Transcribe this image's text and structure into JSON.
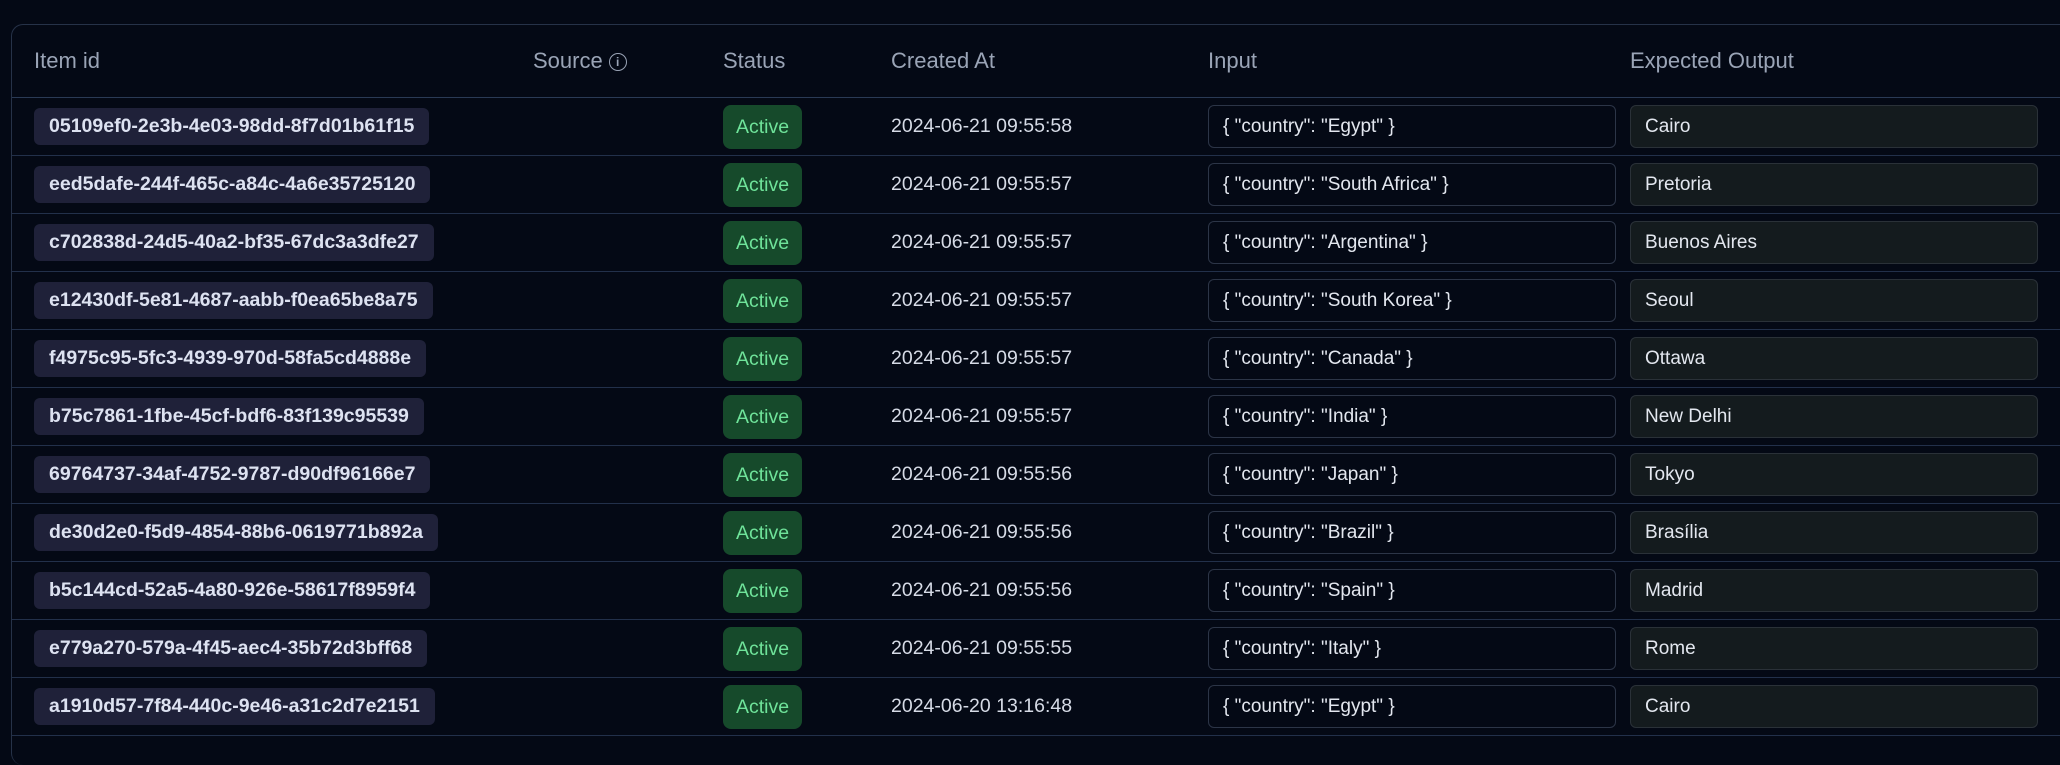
{
  "columns": {
    "item_id": "Item id",
    "source": "Source",
    "status": "Status",
    "created_at": "Created At",
    "input": "Input",
    "expected_output": "Expected Output"
  },
  "source_info_icon": "info-circle-icon",
  "colors": {
    "background": "#040915",
    "status_active_bg": "#164a2b",
    "status_active_text": "#6fe39a",
    "id_chip_bg": "#1f2139"
  },
  "rows": [
    {
      "id": "05109ef0-2e3b-4e03-98dd-8f7d01b61f15",
      "source": "",
      "status": "Active",
      "created_at": "2024-06-21 09:55:58",
      "input": "{ \"country\": \"Egypt\" }",
      "expected_output": "Cairo"
    },
    {
      "id": "eed5dafe-244f-465c-a84c-4a6e35725120",
      "source": "",
      "status": "Active",
      "created_at": "2024-06-21 09:55:57",
      "input": "{ \"country\": \"South Africa\" }",
      "expected_output": "Pretoria"
    },
    {
      "id": "c702838d-24d5-40a2-bf35-67dc3a3dfe27",
      "source": "",
      "status": "Active",
      "created_at": "2024-06-21 09:55:57",
      "input": "{ \"country\": \"Argentina\" }",
      "expected_output": "Buenos Aires"
    },
    {
      "id": "e12430df-5e81-4687-aabb-f0ea65be8a75",
      "source": "",
      "status": "Active",
      "created_at": "2024-06-21 09:55:57",
      "input": "{ \"country\": \"South Korea\" }",
      "expected_output": "Seoul"
    },
    {
      "id": "f4975c95-5fc3-4939-970d-58fa5cd4888e",
      "source": "",
      "status": "Active",
      "created_at": "2024-06-21 09:55:57",
      "input": "{ \"country\": \"Canada\" }",
      "expected_output": "Ottawa"
    },
    {
      "id": "b75c7861-1fbe-45cf-bdf6-83f139c95539",
      "source": "",
      "status": "Active",
      "created_at": "2024-06-21 09:55:57",
      "input": "{ \"country\": \"India\" }",
      "expected_output": "New Delhi"
    },
    {
      "id": "69764737-34af-4752-9787-d90df96166e7",
      "source": "",
      "status": "Active",
      "created_at": "2024-06-21 09:55:56",
      "input": "{ \"country\": \"Japan\" }",
      "expected_output": "Tokyo"
    },
    {
      "id": "de30d2e0-f5d9-4854-88b6-0619771b892a",
      "source": "",
      "status": "Active",
      "created_at": "2024-06-21 09:55:56",
      "input": "{ \"country\": \"Brazil\" }",
      "expected_output": "Brasília"
    },
    {
      "id": "b5c144cd-52a5-4a80-926e-58617f8959f4",
      "source": "",
      "status": "Active",
      "created_at": "2024-06-21 09:55:56",
      "input": "{ \"country\": \"Spain\" }",
      "expected_output": "Madrid"
    },
    {
      "id": "e779a270-579a-4f45-aec4-35b72d3bff68",
      "source": "",
      "status": "Active",
      "created_at": "2024-06-21 09:55:55",
      "input": "{ \"country\": \"Italy\" }",
      "expected_output": "Rome"
    },
    {
      "id": "a1910d57-7f84-440c-9e46-a31c2d7e2151",
      "source": "",
      "status": "Active",
      "created_at": "2024-06-20 13:16:48",
      "input": "{ \"country\": \"Egypt\" }",
      "expected_output": "Cairo"
    }
  ]
}
